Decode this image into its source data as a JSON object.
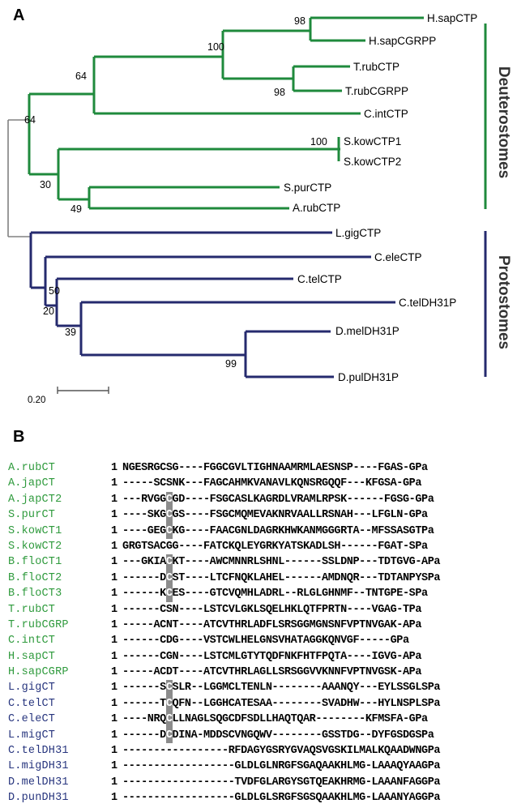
{
  "panel_a": {
    "label": "A",
    "leaves": [
      {
        "name": "H.sapCTP",
        "group": "deut"
      },
      {
        "name": "H.sapCGRPP",
        "group": "deut"
      },
      {
        "name": "T.rubCTP",
        "group": "deut"
      },
      {
        "name": "T.rubCGRPP",
        "group": "deut"
      },
      {
        "name": "C.intCTP",
        "group": "deut"
      },
      {
        "name": "S.kowCTP1",
        "group": "deut"
      },
      {
        "name": "S.kowCTP2",
        "group": "deut"
      },
      {
        "name": "S.purCTP",
        "group": "deut"
      },
      {
        "name": "A.rubCTP",
        "group": "deut"
      },
      {
        "name": "L.gigCTP",
        "group": "prot"
      },
      {
        "name": "C.eleCTP",
        "group": "prot"
      },
      {
        "name": "C.telCTP",
        "group": "prot"
      },
      {
        "name": "C.telDH31P",
        "group": "prot"
      },
      {
        "name": "D.melDH31P",
        "group": "prot"
      },
      {
        "name": "D.pulDH31P",
        "group": "prot"
      }
    ],
    "bootstrap": [
      "98",
      "100",
      "64",
      "98",
      "64",
      "100",
      "30",
      "49",
      "50",
      "20",
      "39",
      "99"
    ],
    "clades": {
      "deuterostomes": "Deuterostomes",
      "protostomes": "Protostomes"
    },
    "scale_label": "0.20",
    "colors": {
      "deut": "#1f8a3c",
      "prot": "#252a6e",
      "root": "#808080"
    }
  },
  "panel_b": {
    "label": "B",
    "start": "1",
    "rows": [
      {
        "name": "A.rubCT",
        "group": "deut",
        "seq": "NGESRGCSG----FGGCGVLTIGHNAAMRMLAESNSP----FGAS-GPa"
      },
      {
        "name": "A.japCT",
        "group": "deut",
        "seq": "-----SCSNK---FAGCAHMKVANAVLKQNSRGQQF---KFGSA-GPa"
      },
      {
        "name": "A.japCT2",
        "group": "deut",
        "seq": "---RVGGCGD----FSGCASLKAGRDLVRAMLRPSK------FGSG-GPa"
      },
      {
        "name": "S.purCT",
        "group": "deut",
        "seq": "----SKGCGS----FSGCMQMEVAKNRVAALLRSNAH---LFGLN-GPa"
      },
      {
        "name": "S.kowCT1",
        "group": "deut",
        "seq": "----GEGCKG----FAACGNLDAGRKHWKANMGGGRTA--MFSSASGTPa"
      },
      {
        "name": "S.kowCT2",
        "group": "deut",
        "seq": "GRGTSACGG----FATCKQLEYGRKYATSKADLSH------FGAT-SPa"
      },
      {
        "name": "B.floCT1",
        "group": "deut",
        "seq": "---GKIACKT----AWCMNNRLSHNL------SSLDNP---TDTGVG-APa"
      },
      {
        "name": "B.floCT2",
        "group": "deut",
        "seq": "------DCST----LTCFNQKLAHEL------AMDNQR---TDTANPYSPa"
      },
      {
        "name": "B.floCT3",
        "group": "deut",
        "seq": "------KCES----GTCVQMHLADRL--RLGLGHNMF--TNTGPE-SPa"
      },
      {
        "name": "T.rubCT",
        "group": "deut",
        "seq": "------CSN----LSTCVLGKLSQELHKLQTFPRTN----VGAG-TPa"
      },
      {
        "name": "T.rubCGRP",
        "group": "deut",
        "seq": "-----ACNT----ATCVTHRLADFLSRSGGMGNSNFVPTNVGAK-APa"
      },
      {
        "name": "C.intCT",
        "group": "deut",
        "seq": "------CDG----VSTCWLHELGNSVHATAGGKQNVGF-----GPa"
      },
      {
        "name": "H.sapCT",
        "group": "deut",
        "seq": "------CGN----LSTCMLGTYTQDFNKFHTFPQTA----IGVG-APa"
      },
      {
        "name": "H.sapCGRP",
        "group": "deut",
        "seq": "-----ACDT----ATCVTHRLAGLLSRSGGVVKNNFVPTNVGSK-APa"
      },
      {
        "name": "L.gigCT",
        "group": "prot",
        "seq": "------SCSLR--LGGMCLTENLN--------AAANQY---EYLSSGLSPa"
      },
      {
        "name": "C.telCT",
        "group": "prot",
        "seq": "------TCQFN--LGGHCATESAA--------SVADHW---HYLNSPLSPa"
      },
      {
        "name": "C.eleCT",
        "group": "prot",
        "seq": "----NRQCLLNAGLSQGCDFSDLLHAQTQAR--------KFMSFA-GPa"
      },
      {
        "name": "L.migCT",
        "group": "prot",
        "seq": "------DCDINA-MDDSCVNGQWV--------GSSTDG--DYFGSDGSPa"
      },
      {
        "name": "C.telDH31",
        "group": "prot",
        "seq": "-----------------RFDAGYGSRYGVAQSVGSKILMALKQAADWNGPa"
      },
      {
        "name": "L.migDH31",
        "group": "prot",
        "seq": "------------------GLDLGLNRGFSGAQAAKHLMG-LAAAQYAAGPa"
      },
      {
        "name": "D.melDH31",
        "group": "prot",
        "seq": "------------------TVDFGLARGYSGTQEAKHRMG-LAAANFAGGPa"
      },
      {
        "name": "D.punDH31",
        "group": "prot",
        "seq": "------------------GLDLGLSRGFSGSQAAKHLMG-LAAANYAGGPa"
      }
    ],
    "colors": {
      "deut": "#2e9a3c",
      "prot": "#27357e"
    }
  }
}
